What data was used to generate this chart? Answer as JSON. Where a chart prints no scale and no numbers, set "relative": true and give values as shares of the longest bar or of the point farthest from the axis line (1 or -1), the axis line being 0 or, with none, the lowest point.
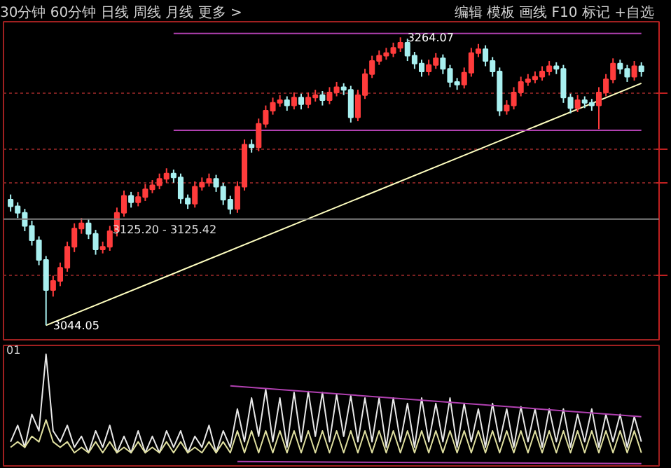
{
  "chart_data": [
    {
      "type": "candlestick",
      "ylim": [
        3033,
        3276
      ],
      "yticks": [
        {
          "value": 3082,
          "label": null
        },
        {
          "value": 3153,
          "label": null
        },
        {
          "value": 3179,
          "label": null
        },
        {
          "value": 3221,
          "label": null
        }
      ],
      "grid": "y",
      "tick_labels": false,
      "categories": [
        null,
        null,
        null,
        null,
        null,
        null,
        null,
        null,
        null,
        null,
        null,
        null,
        null,
        null,
        null,
        null,
        null,
        null,
        null,
        null,
        null,
        null,
        null,
        null,
        null,
        null,
        null,
        null,
        null,
        null,
        null,
        null,
        null,
        null,
        null,
        null,
        null,
        null,
        null,
        null,
        null,
        null,
        null,
        null,
        null,
        null,
        null,
        null,
        null,
        null,
        null,
        null,
        null,
        null,
        null,
        null,
        null,
        null,
        null,
        null,
        null,
        null,
        null,
        null,
        null,
        null,
        null,
        null,
        null,
        null,
        null,
        null,
        null,
        null,
        null,
        null,
        null,
        null,
        null,
        null,
        null,
        null,
        null,
        null,
        null,
        null,
        null,
        null,
        null,
        null
      ],
      "ohlc": [
        [
          3140,
          3144,
          3131,
          3135
        ],
        [
          3135,
          3138,
          3126,
          3130
        ],
        [
          3130,
          3133,
          3116,
          3120
        ],
        [
          3120,
          3124,
          3105,
          3109
        ],
        [
          3109,
          3112,
          3090,
          3094
        ],
        [
          3094,
          3097,
          3044.05,
          3071
        ],
        [
          3071,
          3082,
          3066,
          3078
        ],
        [
          3078,
          3092,
          3074,
          3088
        ],
        [
          3088,
          3108,
          3085,
          3104
        ],
        [
          3104,
          3122,
          3100,
          3118
        ],
        [
          3118,
          3126,
          3114,
          3122
        ],
        [
          3122,
          3125,
          3110,
          3114
        ],
        [
          3114,
          3117,
          3098,
          3102
        ],
        [
          3102,
          3108,
          3099,
          3104
        ],
        [
          3104,
          3120,
          3101,
          3116
        ],
        [
          3116,
          3134,
          3112,
          3130
        ],
        [
          3130,
          3147,
          3127,
          3143
        ],
        [
          3143,
          3146,
          3134,
          3138
        ],
        [
          3138,
          3146,
          3135,
          3142
        ],
        [
          3142,
          3152,
          3139,
          3148
        ],
        [
          3148,
          3155,
          3145,
          3151
        ],
        [
          3151,
          3160,
          3148,
          3156
        ],
        [
          3156,
          3164,
          3153,
          3160
        ],
        [
          3160,
          3163,
          3153,
          3157
        ],
        [
          3157,
          3160,
          3137,
          3141
        ],
        [
          3141,
          3144,
          3133,
          3137
        ],
        [
          3137,
          3154,
          3134,
          3150
        ],
        [
          3150,
          3157,
          3147,
          3153
        ],
        [
          3153,
          3160,
          3150,
          3156
        ],
        [
          3156,
          3159,
          3146,
          3150
        ],
        [
          3150,
          3153,
          3136,
          3140
        ],
        [
          3140,
          3143,
          3129,
          3133
        ],
        [
          3133,
          3154,
          3130,
          3150
        ],
        [
          3150,
          3186,
          3147,
          3182
        ],
        [
          3182,
          3186,
          3176,
          3180
        ],
        [
          3180,
          3202,
          3177,
          3198
        ],
        [
          3198,
          3212,
          3195,
          3208
        ],
        [
          3208,
          3218,
          3205,
          3214
        ],
        [
          3214,
          3220,
          3211,
          3216
        ],
        [
          3216,
          3219,
          3208,
          3212
        ],
        [
          3212,
          3222,
          3209,
          3218
        ],
        [
          3218,
          3221,
          3209,
          3213
        ],
        [
          3213,
          3222,
          3210,
          3218
        ],
        [
          3218,
          3224,
          3215,
          3220
        ],
        [
          3220,
          3223,
          3212,
          3216
        ],
        [
          3216,
          3226,
          3213,
          3222
        ],
        [
          3222,
          3230,
          3219,
          3226
        ],
        [
          3226,
          3229,
          3220,
          3224
        ],
        [
          3224,
          3227,
          3199,
          3203
        ],
        [
          3203,
          3224,
          3200,
          3220
        ],
        [
          3220,
          3240,
          3217,
          3236
        ],
        [
          3236,
          3250,
          3233,
          3246
        ],
        [
          3246,
          3254,
          3243,
          3250
        ],
        [
          3250,
          3256,
          3247,
          3252
        ],
        [
          3252,
          3260,
          3249,
          3256
        ],
        [
          3256,
          3264.07,
          3253,
          3260
        ],
        [
          3260,
          3263,
          3246,
          3250
        ],
        [
          3250,
          3253,
          3240,
          3244
        ],
        [
          3244,
          3247,
          3234,
          3238
        ],
        [
          3238,
          3247,
          3235,
          3243
        ],
        [
          3243,
          3252,
          3240,
          3248
        ],
        [
          3248,
          3251,
          3236,
          3240
        ],
        [
          3240,
          3243,
          3226,
          3230
        ],
        [
          3230,
          3233,
          3224,
          3228
        ],
        [
          3228,
          3241,
          3225,
          3237
        ],
        [
          3237,
          3256,
          3234,
          3252
        ],
        [
          3252,
          3259,
          3249,
          3255
        ],
        [
          3255,
          3258,
          3242,
          3246
        ],
        [
          3246,
          3249,
          3234,
          3238
        ],
        [
          3238,
          3241,
          3204,
          3208
        ],
        [
          3208,
          3216,
          3205,
          3212
        ],
        [
          3212,
          3226,
          3209,
          3222
        ],
        [
          3222,
          3234,
          3219,
          3230
        ],
        [
          3230,
          3236,
          3227,
          3232
        ],
        [
          3232,
          3238,
          3229,
          3234
        ],
        [
          3234,
          3242,
          3231,
          3238
        ],
        [
          3238,
          3246,
          3235,
          3242
        ],
        [
          3242,
          3245,
          3236,
          3240
        ],
        [
          3240,
          3243,
          3214,
          3218
        ],
        [
          3218,
          3221,
          3206,
          3210
        ],
        [
          3210,
          3220,
          3207,
          3216
        ],
        [
          3216,
          3219,
          3210,
          3214
        ],
        [
          3214,
          3217,
          3208,
          3212
        ],
        [
          3212,
          3226,
          3194,
          3222
        ],
        [
          3222,
          3236,
          3219,
          3232
        ],
        [
          3232,
          3248,
          3229,
          3244
        ],
        [
          3244,
          3247,
          3236,
          3240
        ],
        [
          3240,
          3243,
          3230,
          3234
        ],
        [
          3234,
          3246,
          3231,
          3242
        ],
        [
          3242,
          3245,
          3234,
          3238
        ]
      ],
      "series": [
        {
          "type": "line",
          "values": [
            null,
            null,
            null,
            null,
            null,
            3044,
            null,
            null,
            null,
            null,
            null,
            null,
            null,
            null,
            null,
            null,
            null,
            null,
            null,
            null,
            null,
            null,
            null,
            null,
            null,
            null,
            null,
            null,
            null,
            null,
            null,
            null,
            null,
            null,
            null,
            null,
            null,
            null,
            null,
            null,
            null,
            null,
            null,
            null,
            null,
            null,
            null,
            null,
            null,
            null,
            null,
            null,
            null,
            null,
            null,
            null,
            null,
            null,
            null,
            null,
            null,
            null,
            null,
            null,
            null,
            null,
            null,
            null,
            null,
            null,
            null,
            null,
            null,
            null,
            null,
            null,
            null,
            null,
            null,
            null,
            null,
            null,
            null,
            null,
            null,
            null,
            null,
            null,
            null,
            3229
          ],
          "color": "#ffffc0"
        },
        {
          "type": "line",
          "values": [
            null,
            null,
            null,
            null,
            null,
            null,
            null,
            null,
            null,
            null,
            null,
            null,
            null,
            null,
            null,
            null,
            null,
            null,
            null,
            null,
            null,
            null,
            null,
            3267,
            null,
            null,
            null,
            null,
            null,
            null,
            null,
            null,
            null,
            null,
            null,
            null,
            null,
            null,
            null,
            null,
            null,
            null,
            null,
            null,
            null,
            null,
            null,
            null,
            null,
            null,
            null,
            null,
            null,
            null,
            null,
            null,
            null,
            null,
            null,
            null,
            null,
            null,
            null,
            null,
            null,
            null,
            null,
            null,
            null,
            null,
            null,
            null,
            null,
            null,
            null,
            null,
            null,
            null,
            null,
            null,
            null,
            null,
            null,
            null,
            null,
            null,
            null,
            null,
            null,
            3267
          ],
          "color": "#b040b0"
        },
        {
          "type": "line",
          "values": [
            null,
            null,
            null,
            null,
            null,
            null,
            null,
            null,
            null,
            null,
            null,
            null,
            null,
            null,
            null,
            null,
            null,
            null,
            null,
            null,
            null,
            null,
            null,
            3193,
            null,
            null,
            null,
            null,
            null,
            null,
            null,
            null,
            null,
            null,
            null,
            null,
            null,
            null,
            null,
            null,
            null,
            null,
            null,
            null,
            null,
            null,
            null,
            null,
            null,
            null,
            null,
            null,
            null,
            null,
            null,
            null,
            null,
            null,
            null,
            null,
            null,
            null,
            null,
            null,
            null,
            null,
            null,
            null,
            null,
            null,
            null,
            null,
            null,
            null,
            null,
            null,
            null,
            null,
            null,
            null,
            null,
            null,
            null,
            null,
            null,
            null,
            null,
            null,
            null,
            3193
          ],
          "color": "#b040b0"
        }
      ],
      "ref_lines": [
        {
          "axis": "y",
          "value": 3125.2,
          "label": "3125.20 - 3125.42",
          "color": "#808080"
        }
      ],
      "annotations": [
        "30分钟 60分钟 日线 周线 月线 更多 >",
        "编辑 模板 画线 F10 标记 +自选",
        {
          "text": "3264.07",
          "y": 3264.07
        },
        "3044.05"
      ]
    },
    {
      "type": "line",
      "relative": true,
      "grid": false,
      "tick_labels": false,
      "categories": [
        null,
        null,
        null,
        null,
        null,
        null,
        null,
        null,
        null,
        null,
        null,
        null,
        null,
        null,
        null,
        null,
        null,
        null,
        null,
        null,
        null,
        null,
        null,
        null,
        null,
        null,
        null,
        null,
        null,
        null,
        null,
        null,
        null,
        null,
        null,
        null,
        null,
        null,
        null,
        null,
        null,
        null,
        null,
        null,
        null,
        null,
        null,
        null,
        null,
        null,
        null,
        null,
        null,
        null,
        null,
        null,
        null,
        null,
        null,
        null,
        null,
        null,
        null,
        null,
        null,
        null,
        null,
        null,
        null,
        null,
        null,
        null,
        null,
        null,
        null,
        null,
        null,
        null,
        null,
        null,
        null,
        null,
        null,
        null,
        null,
        null,
        null,
        null,
        null,
        null
      ],
      "series": [
        {
          "color": "#e8e8e8",
          "values": [
            0.2,
            0.35,
            0.15,
            0.45,
            0.3,
            1.0,
            0.3,
            0.2,
            0.35,
            0.15,
            0.25,
            0.1,
            0.3,
            0.15,
            0.35,
            0.1,
            0.25,
            0.1,
            0.3,
            0.1,
            0.25,
            0.1,
            0.3,
            0.15,
            0.3,
            0.1,
            0.25,
            0.15,
            0.35,
            0.1,
            0.3,
            0.15,
            0.5,
            0.2,
            0.6,
            0.25,
            0.68,
            0.2,
            0.6,
            0.15,
            0.65,
            0.2,
            0.66,
            0.25,
            0.65,
            0.2,
            0.63,
            0.25,
            0.62,
            0.2,
            0.6,
            0.2,
            0.6,
            0.15,
            0.6,
            0.2,
            0.55,
            0.15,
            0.6,
            0.2,
            0.55,
            0.2,
            0.6,
            0.15,
            0.55,
            0.2,
            0.5,
            0.15,
            0.55,
            0.2,
            0.5,
            0.15,
            0.52,
            0.2,
            0.5,
            0.15,
            0.5,
            0.2,
            0.5,
            0.15,
            0.45,
            0.2,
            0.5,
            0.15,
            0.45,
            0.2,
            0.45,
            0.15,
            0.43,
            0.2
          ]
        },
        {
          "color": "#e0e0a0",
          "values": [
            0.15,
            0.2,
            0.15,
            0.25,
            0.2,
            0.4,
            0.2,
            0.15,
            0.2,
            0.1,
            0.15,
            0.1,
            0.2,
            0.1,
            0.2,
            0.1,
            0.15,
            0.1,
            0.2,
            0.1,
            0.15,
            0.1,
            0.2,
            0.1,
            0.2,
            0.1,
            0.15,
            0.1,
            0.2,
            0.1,
            0.2,
            0.1,
            0.3,
            0.1,
            0.3,
            0.1,
            0.3,
            0.1,
            0.3,
            0.1,
            0.3,
            0.1,
            0.3,
            0.1,
            0.3,
            0.1,
            0.3,
            0.1,
            0.3,
            0.1,
            0.3,
            0.1,
            0.3,
            0.1,
            0.3,
            0.1,
            0.3,
            0.1,
            0.3,
            0.1,
            0.3,
            0.1,
            0.3,
            0.1,
            0.3,
            0.1,
            0.3,
            0.1,
            0.3,
            0.1,
            0.3,
            0.1,
            0.3,
            0.1,
            0.3,
            0.1,
            0.3,
            0.1,
            0.3,
            0.1,
            0.3,
            0.1,
            0.3,
            0.1,
            0.3,
            0.1,
            0.3,
            0.1,
            0.3,
            0.1
          ]
        },
        {
          "values": [
            null,
            null,
            null,
            null,
            null,
            null,
            null,
            null,
            null,
            null,
            null,
            null,
            null,
            null,
            null,
            null,
            null,
            null,
            null,
            null,
            null,
            null,
            null,
            null,
            null,
            null,
            null,
            null,
            null,
            null,
            null,
            0.71,
            null,
            null,
            null,
            null,
            null,
            null,
            null,
            null,
            null,
            null,
            null,
            null,
            null,
            null,
            null,
            null,
            null,
            null,
            null,
            null,
            null,
            null,
            null,
            null,
            null,
            null,
            null,
            null,
            null,
            null,
            null,
            null,
            null,
            null,
            null,
            null,
            null,
            null,
            null,
            null,
            null,
            null,
            null,
            null,
            null,
            null,
            null,
            null,
            null,
            null,
            null,
            null,
            null,
            null,
            null,
            null,
            null,
            0.43
          ],
          "color": "#b040b0"
        },
        {
          "values": [
            null,
            null,
            null,
            null,
            null,
            null,
            null,
            null,
            null,
            null,
            null,
            null,
            null,
            null,
            null,
            null,
            null,
            null,
            null,
            null,
            null,
            null,
            null,
            null,
            null,
            null,
            null,
            null,
            null,
            null,
            null,
            null,
            0.02,
            null,
            null,
            null,
            null,
            null,
            null,
            null,
            null,
            null,
            null,
            null,
            null,
            null,
            null,
            null,
            null,
            null,
            null,
            null,
            null,
            null,
            null,
            null,
            null,
            null,
            null,
            null,
            null,
            null,
            null,
            null,
            null,
            null,
            null,
            null,
            null,
            null,
            null,
            null,
            null,
            null,
            null,
            null,
            null,
            null,
            null,
            null,
            null,
            null,
            null,
            null,
            null,
            null,
            null,
            null,
            null,
            0.0
          ],
          "color": "#b040b0"
        }
      ],
      "annotations": [
        "01"
      ]
    }
  ]
}
